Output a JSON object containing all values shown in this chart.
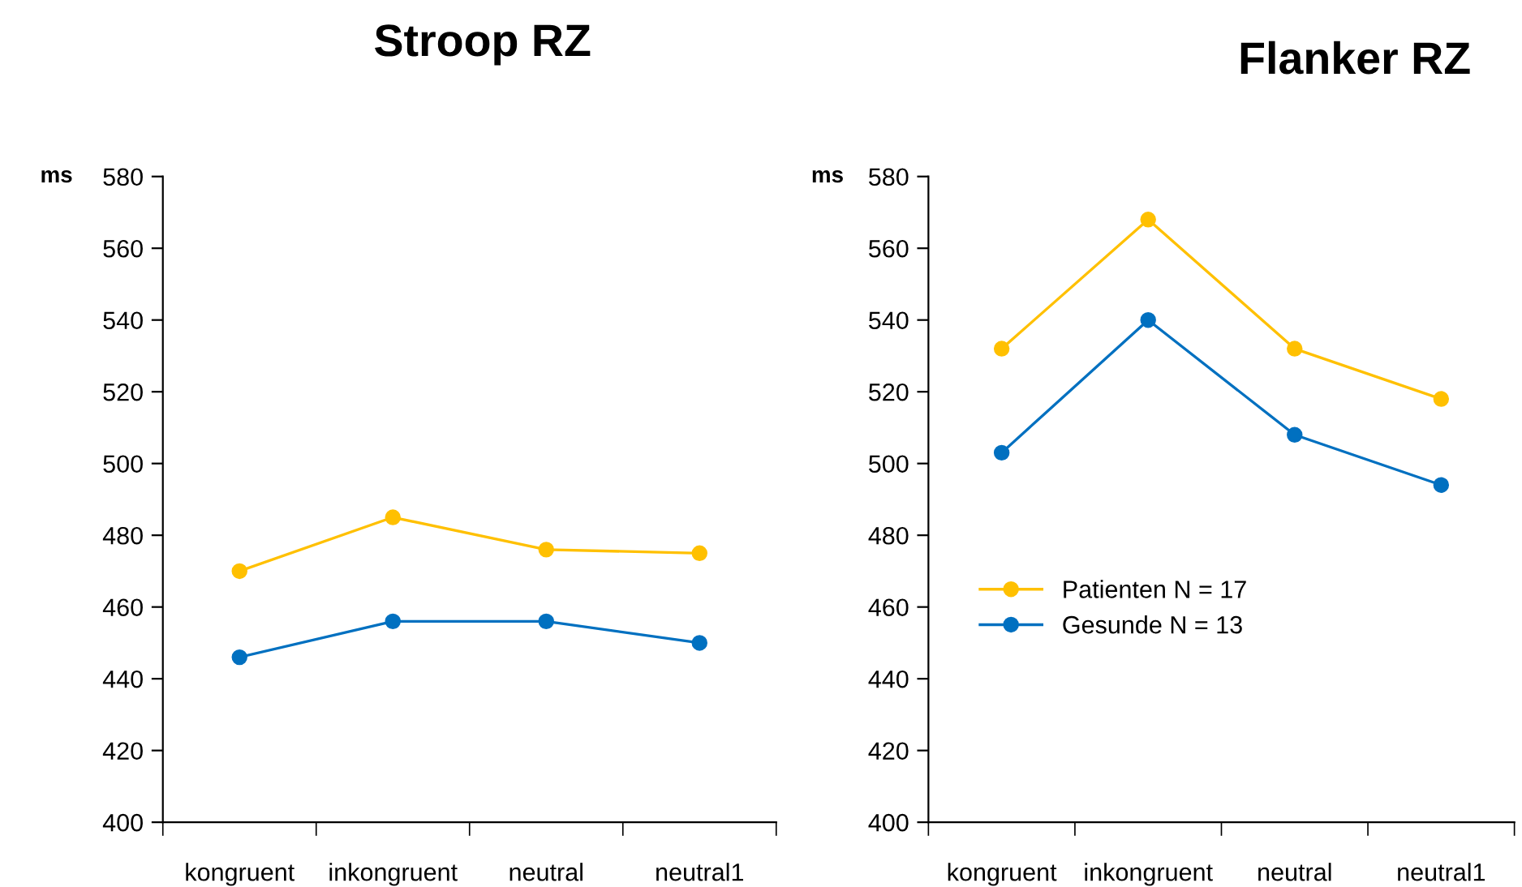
{
  "chart_data": [
    {
      "type": "line",
      "title": "Stroop RZ",
      "ylabel": "ms",
      "categories": [
        "kongruent",
        "inkongruent",
        "neutral",
        "neutral1"
      ],
      "ylim": [
        400,
        580
      ],
      "yticks": [
        400,
        420,
        440,
        460,
        480,
        500,
        520,
        540,
        560,
        580
      ],
      "grid": false,
      "legend": false,
      "marker": "circle",
      "line_style": "solid",
      "series": [
        {
          "color": "#ffc000",
          "values": [
            470,
            485,
            476,
            475
          ]
        },
        {
          "color": "#0070c0",
          "values": [
            446,
            456,
            456,
            450
          ]
        }
      ]
    },
    {
      "type": "line",
      "title": "Flanker RZ",
      "ylabel": "ms",
      "categories": [
        "kongruent",
        "inkongruent",
        "neutral",
        "neutral1"
      ],
      "ylim": [
        400,
        580
      ],
      "yticks": [
        400,
        420,
        440,
        460,
        480,
        500,
        520,
        540,
        560,
        580
      ],
      "grid": false,
      "legend": "lower left",
      "marker": "circle",
      "line_style": "solid",
      "series": [
        {
          "name": "Patienten N = 17",
          "color": "#ffc000",
          "values": [
            532,
            568,
            532,
            518
          ]
        },
        {
          "name": "Gesunde N = 13",
          "color": "#0070c0",
          "values": [
            503,
            540,
            508,
            494
          ]
        }
      ]
    }
  ]
}
